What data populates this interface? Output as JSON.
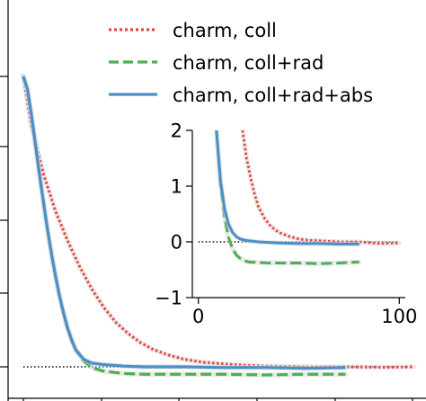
{
  "chart_data": [
    {
      "type": "line",
      "panel": "main",
      "title": "",
      "xlabel": "",
      "ylabel": "",
      "xlim": [
        0,
        100
      ],
      "ylim": [
        -0.1,
        4.0
      ],
      "grid": false,
      "legend_position": "top-right",
      "reference_line": {
        "y": 0,
        "style": "dotted",
        "color": "#000000"
      },
      "series": [
        {
          "name": "charm, coll",
          "color": "#e8453c",
          "style": "dotted",
          "x": [
            0,
            2,
            5,
            8,
            11,
            14,
            17,
            20,
            23,
            26,
            29,
            32,
            36,
            40,
            45,
            52,
            60,
            70,
            80,
            90,
            97
          ],
          "y": [
            3.92,
            3.25,
            2.6,
            2.1,
            1.7,
            1.35,
            1.05,
            0.8,
            0.6,
            0.45,
            0.33,
            0.24,
            0.16,
            0.1,
            0.06,
            0.03,
            0.01,
            0.0,
            0.0,
            -0.005,
            0.0
          ]
        },
        {
          "name": "charm, coll+rad",
          "color": "#4caf50",
          "style": "dashed",
          "x": [
            0,
            1,
            2,
            3,
            4,
            5,
            6,
            7,
            8,
            9,
            10,
            11,
            12,
            13,
            15,
            17,
            20,
            25,
            30,
            40,
            50,
            60,
            70,
            80
          ],
          "y": [
            3.92,
            3.75,
            3.4,
            3.0,
            2.6,
            2.22,
            1.85,
            1.52,
            1.22,
            0.95,
            0.72,
            0.52,
            0.36,
            0.23,
            0.08,
            -0.01,
            -0.06,
            -0.09,
            -0.1,
            -0.1,
            -0.1,
            -0.11,
            -0.1,
            -0.1
          ]
        },
        {
          "name": "charm, coll+rad+abs",
          "color": "#4a8fc9",
          "style": "solid",
          "x": [
            0,
            1,
            2,
            3,
            4,
            5,
            6,
            7,
            8,
            9,
            10,
            11,
            12,
            13,
            15,
            17,
            20,
            25,
            30,
            40,
            50,
            60,
            70,
            80
          ],
          "y": [
            3.92,
            3.75,
            3.4,
            3.0,
            2.6,
            2.22,
            1.85,
            1.52,
            1.22,
            0.95,
            0.72,
            0.52,
            0.36,
            0.23,
            0.1,
            0.05,
            0.03,
            0.01,
            0.0,
            0.0,
            -0.01,
            -0.01,
            -0.02,
            -0.01
          ]
        }
      ]
    },
    {
      "type": "line",
      "panel": "inset",
      "title": "",
      "xlabel": "",
      "ylabel": "",
      "xlim": [
        -3,
        103
      ],
      "ylim": [
        -1,
        2
      ],
      "xticks": [
        "0",
        "100"
      ],
      "yticks": [
        "−1",
        "0",
        "1",
        "2"
      ],
      "grid": false,
      "reference_line": {
        "y": 0,
        "style": "dotted",
        "color": "#000000"
      },
      "series": [
        {
          "name": "charm, coll",
          "color": "#e8453c",
          "style": "dotted",
          "x": [
            22,
            24,
            26,
            28,
            30,
            33,
            36,
            40,
            45,
            50,
            55,
            60,
            70,
            80,
            90,
            100
          ],
          "y": [
            2.0,
            1.5,
            1.15,
            0.85,
            0.62,
            0.42,
            0.28,
            0.17,
            0.1,
            0.05,
            0.03,
            0.02,
            0.0,
            0.0,
            -0.03,
            -0.02
          ]
        },
        {
          "name": "charm, coll+rad",
          "color": "#4caf50",
          "style": "dashed",
          "x": [
            9,
            11,
            13,
            15,
            17,
            19,
            21,
            23,
            25,
            30,
            35,
            40,
            50,
            60,
            70,
            80
          ],
          "y": [
            2.0,
            1.05,
            0.45,
            0.08,
            -0.12,
            -0.24,
            -0.3,
            -0.34,
            -0.36,
            -0.37,
            -0.38,
            -0.38,
            -0.38,
            -0.39,
            -0.38,
            -0.36
          ]
        },
        {
          "name": "charm, coll+rad+abs",
          "color": "#4a8fc9",
          "style": "solid",
          "x": [
            9,
            11,
            13,
            15,
            17,
            19,
            21,
            23,
            25,
            30,
            35,
            40,
            50,
            60,
            70,
            80
          ],
          "y": [
            2.0,
            1.1,
            0.6,
            0.32,
            0.17,
            0.09,
            0.05,
            0.03,
            0.02,
            0.0,
            -0.01,
            -0.02,
            -0.03,
            -0.03,
            -0.04,
            -0.04
          ]
        }
      ]
    }
  ]
}
